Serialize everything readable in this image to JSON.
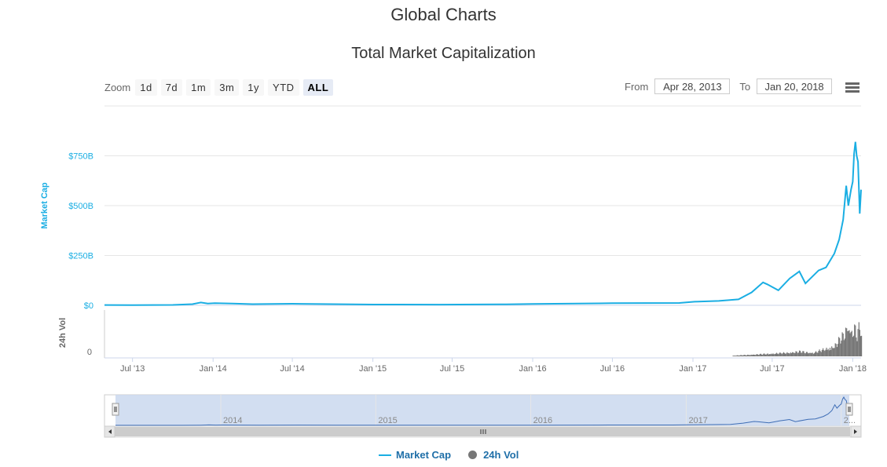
{
  "page": {
    "title": "Global Charts"
  },
  "toolbar": {
    "zoom_label": "Zoom",
    "zoom_buttons": [
      "1d",
      "7d",
      "1m",
      "3m",
      "1y",
      "YTD",
      "ALL"
    ],
    "active_zoom": "ALL",
    "from_label": "From",
    "from_value": "Apr 28, 2013",
    "to_label": "To",
    "to_value": "Jan 20, 2018",
    "menu_icon": "hamburger-menu-icon"
  },
  "colors": {
    "market_cap": "#1aaee3",
    "volume": "#777777",
    "navigator_fill": "#cad8ee"
  },
  "chart_data": {
    "type": "area",
    "title": "Total Market Capitalization",
    "x_ticks": [
      "Jul '13",
      "Jan '14",
      "Jul '14",
      "Jan '15",
      "Jul '15",
      "Jan '16",
      "Jul '16",
      "Jan '17",
      "Jul '17",
      "Jan '18"
    ],
    "navigator_ticks": [
      "2014",
      "2015",
      "2016",
      "2017",
      "2..."
    ],
    "panels": [
      {
        "ylabel": "Market Cap",
        "y_ticks": [
          "$0",
          "$250B",
          "$500B",
          "$750B"
        ],
        "ylim": [
          0,
          1000
        ]
      },
      {
        "ylabel": "24h Vol",
        "y_ticks": [
          "0"
        ]
      }
    ],
    "series": [
      {
        "name": "Market Cap",
        "unit": "billions USD",
        "points": [
          [
            "2013-04-28",
            1.5
          ],
          [
            "2013-07-01",
            1.2
          ],
          [
            "2013-10-01",
            2
          ],
          [
            "2013-11-15",
            6
          ],
          [
            "2013-12-04",
            14
          ],
          [
            "2013-12-20",
            9
          ],
          [
            "2014-01-05",
            11
          ],
          [
            "2014-02-15",
            9
          ],
          [
            "2014-04-01",
            6
          ],
          [
            "2014-07-01",
            8
          ],
          [
            "2014-10-01",
            6
          ],
          [
            "2015-01-01",
            4
          ],
          [
            "2015-06-01",
            3.5
          ],
          [
            "2015-11-01",
            5
          ],
          [
            "2016-01-01",
            7
          ],
          [
            "2016-06-01",
            10
          ],
          [
            "2016-07-01",
            11
          ],
          [
            "2016-12-01",
            12
          ],
          [
            "2017-01-05",
            18
          ],
          [
            "2017-03-01",
            22
          ],
          [
            "2017-04-15",
            30
          ],
          [
            "2017-05-15",
            65
          ],
          [
            "2017-06-10",
            115
          ],
          [
            "2017-06-20",
            105
          ],
          [
            "2017-07-15",
            75
          ],
          [
            "2017-08-10",
            135
          ],
          [
            "2017-09-01",
            170
          ],
          [
            "2017-09-15",
            110
          ],
          [
            "2017-10-15",
            175
          ],
          [
            "2017-11-01",
            190
          ],
          [
            "2017-11-20",
            260
          ],
          [
            "2017-12-01",
            330
          ],
          [
            "2017-12-10",
            430
          ],
          [
            "2017-12-17",
            600
          ],
          [
            "2017-12-22",
            500
          ],
          [
            "2017-12-28",
            580
          ],
          [
            "2018-01-01",
            620
          ],
          [
            "2018-01-04",
            760
          ],
          [
            "2018-01-07",
            820
          ],
          [
            "2018-01-10",
            750
          ],
          [
            "2018-01-13",
            720
          ],
          [
            "2018-01-17",
            460
          ],
          [
            "2018-01-20",
            580
          ]
        ]
      },
      {
        "name": "24h Vol",
        "points": [
          [
            "2013-04-28",
            0
          ],
          [
            "2017-04-01",
            0.02
          ],
          [
            "2017-06-01",
            0.06
          ],
          [
            "2017-08-01",
            0.1
          ],
          [
            "2017-09-01",
            0.14
          ],
          [
            "2017-10-01",
            0.1
          ],
          [
            "2017-11-01",
            0.22
          ],
          [
            "2017-11-20",
            0.3
          ],
          [
            "2017-12-01",
            0.48
          ],
          [
            "2017-12-10",
            0.62
          ],
          [
            "2017-12-20",
            0.9
          ],
          [
            "2017-12-28",
            0.7
          ],
          [
            "2018-01-04",
            0.85
          ],
          [
            "2018-01-10",
            0.6
          ],
          [
            "2018-01-17",
            0.95
          ],
          [
            "2018-01-20",
            0.55
          ]
        ]
      }
    ],
    "navigator_range": [
      "2013-04-28",
      "2018-01-20"
    ],
    "legend": [
      "Market Cap",
      "24h Vol"
    ],
    "legend_position": "bottom-center",
    "grid": true
  }
}
